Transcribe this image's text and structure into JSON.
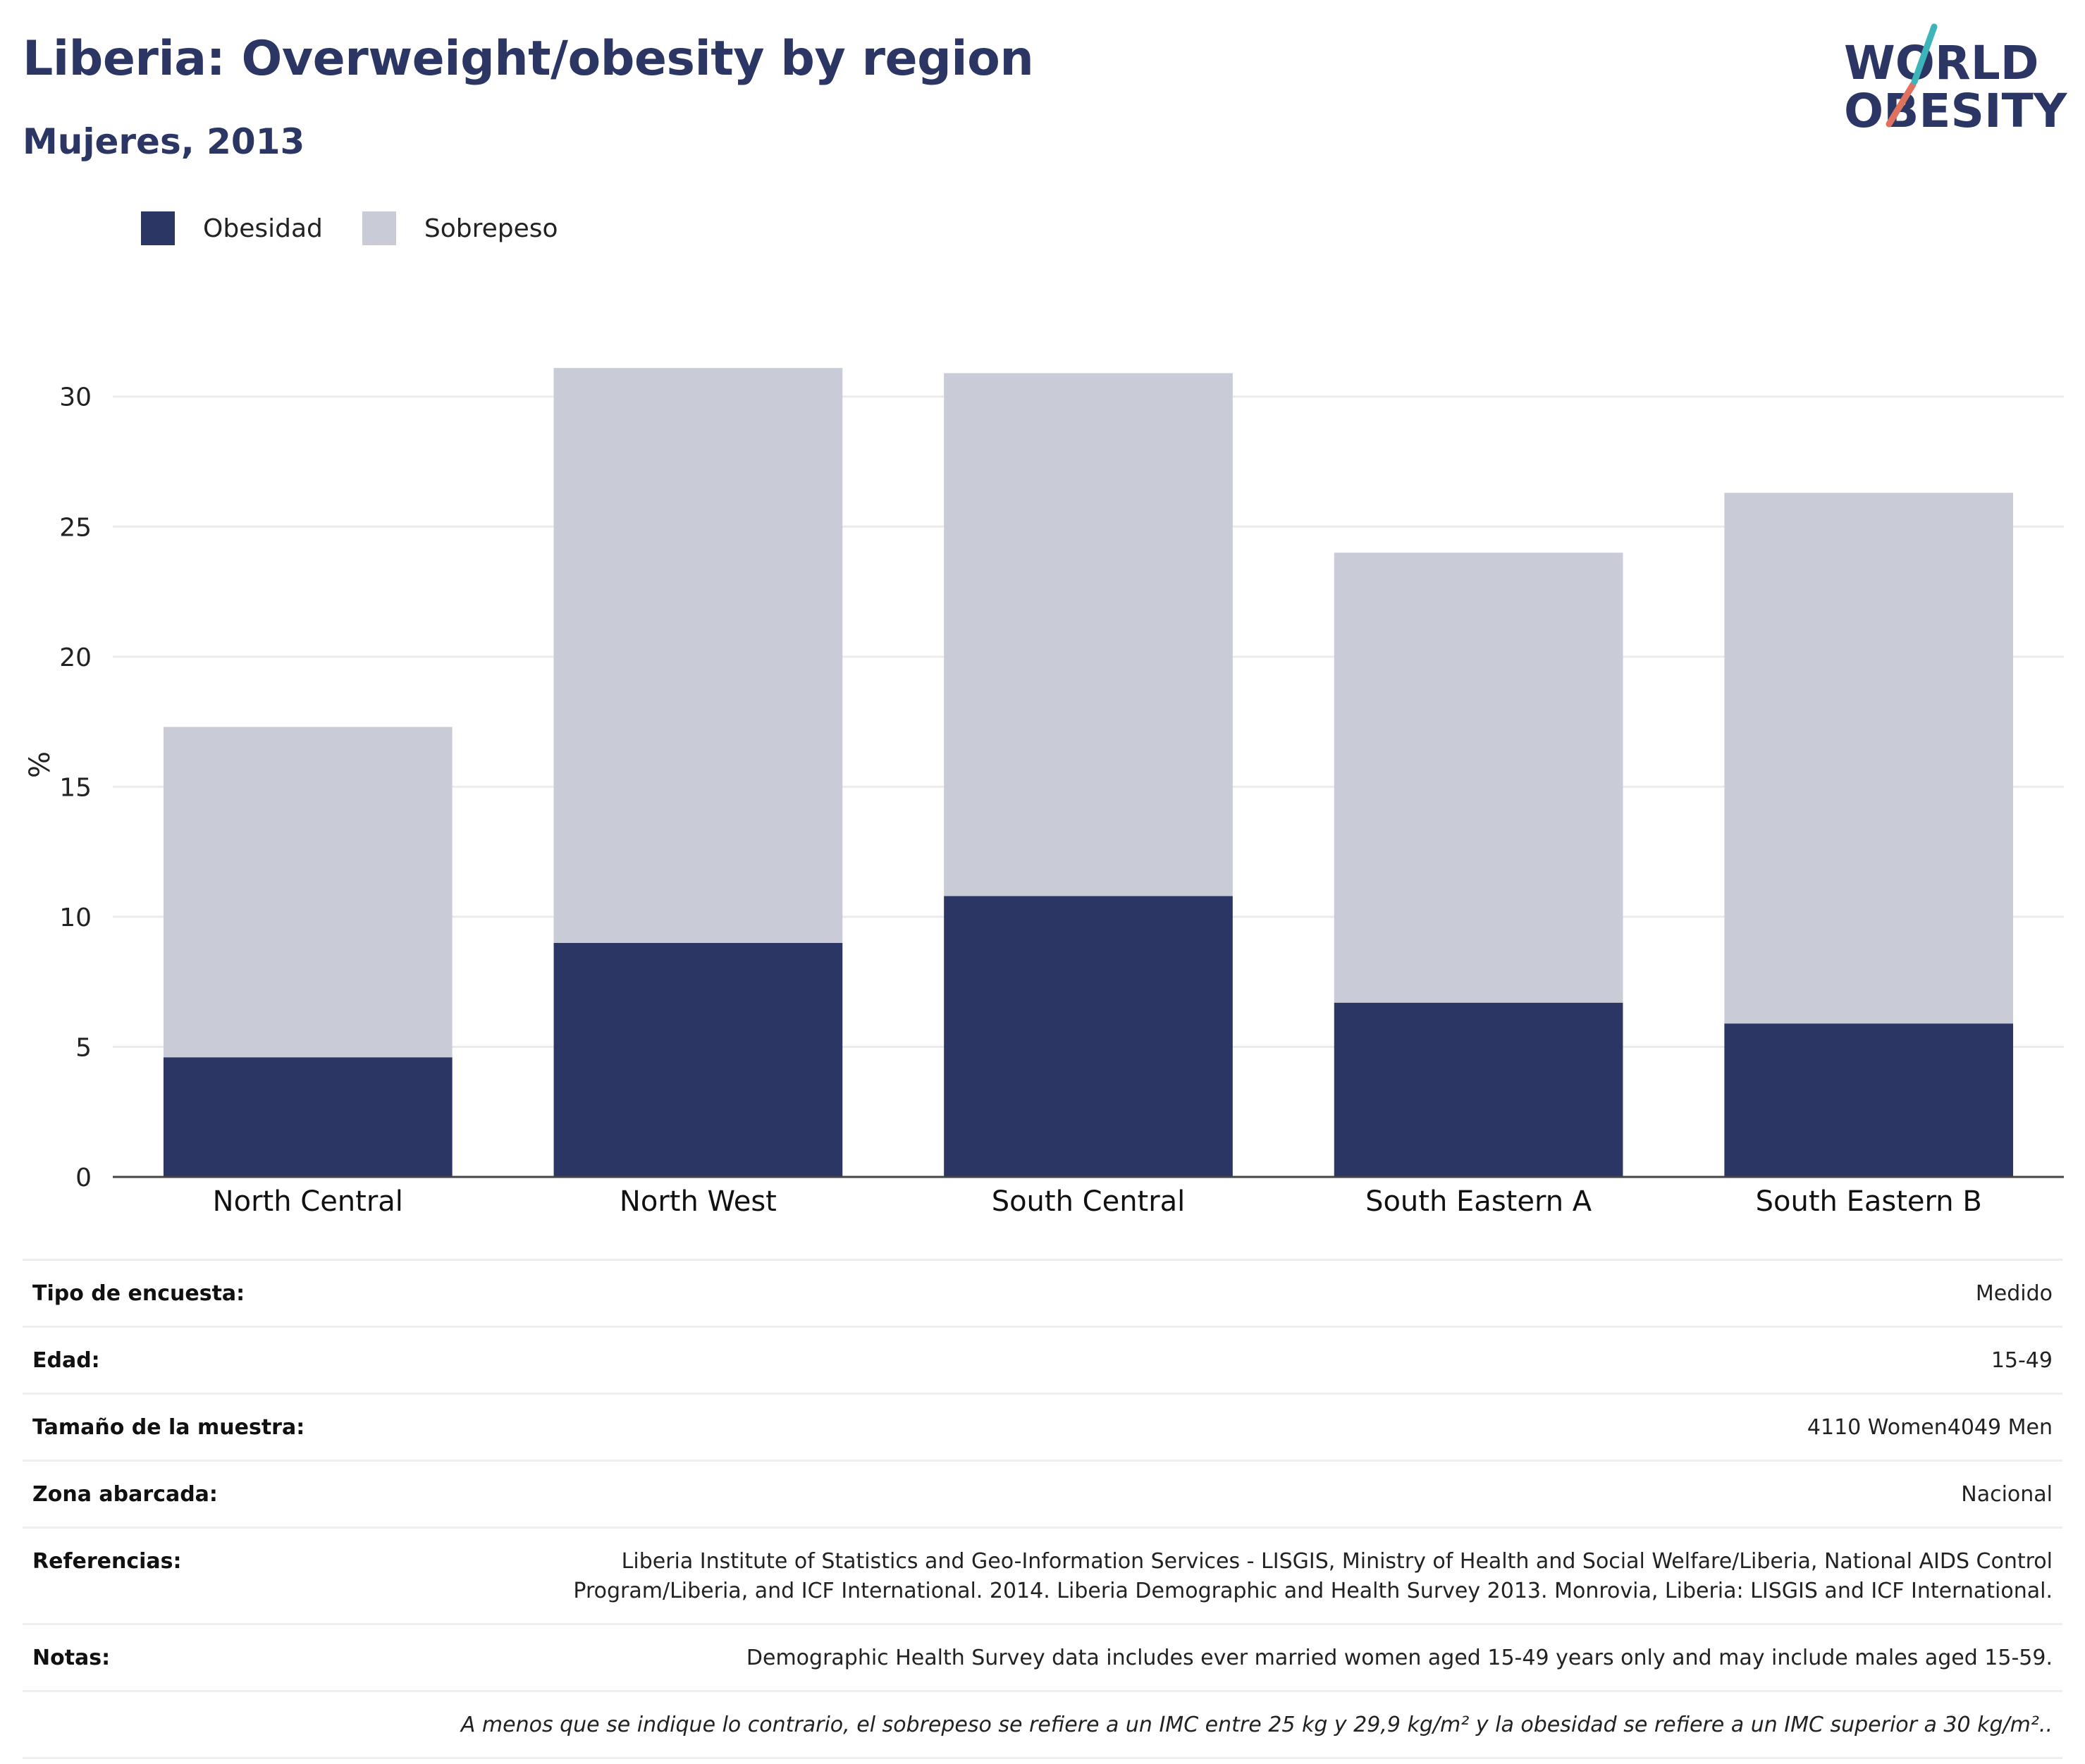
{
  "title": "Liberia: Overweight/obesity by region",
  "subtitle": "Mujeres, 2013",
  "logo": {
    "line1": "WORLD",
    "line2": "OBESITY"
  },
  "legend": [
    {
      "label": "Obesidad",
      "color": "#2b3664"
    },
    {
      "label": "Sobrepeso",
      "color": "#c9cbd7"
    }
  ],
  "chart_data": {
    "type": "bar",
    "stacked": true,
    "categories": [
      "North Central",
      "North West",
      "South Central",
      "South Eastern A",
      "South Eastern B"
    ],
    "series": [
      {
        "name": "Obesidad",
        "color": "#2b3664",
        "values": [
          4.6,
          9.0,
          10.8,
          6.7,
          5.9
        ]
      },
      {
        "name": "Sobrepeso",
        "color": "#c9cbd7",
        "values": [
          12.7,
          22.1,
          20.1,
          17.3,
          20.4
        ]
      }
    ],
    "ylabel": "%",
    "ylim": [
      0,
      31.7
    ],
    "yticks": [
      0,
      5,
      10,
      15,
      20,
      25,
      30
    ],
    "grid": true,
    "legend_position": "top-left"
  },
  "meta": [
    {
      "key": "Tipo de encuesta:",
      "value": "Medido"
    },
    {
      "key": "Edad:",
      "value": "15-49"
    },
    {
      "key": "Tamaño de la muestra:",
      "value": "4110 Women4049 Men"
    },
    {
      "key": "Zona abarcada:",
      "value": "Nacional"
    },
    {
      "key": "Referencias:",
      "value": "Liberia Institute of Statistics and Geo-Information Services - LISGIS, Ministry of Health and Social Welfare/Liberia, National AIDS Control Program/Liberia, and ICF International. 2014. Liberia Demographic and Health Survey 2013. Monrovia, Liberia: LISGIS and ICF International."
    },
    {
      "key": "Notas:",
      "value": "Demographic Health Survey data includes ever married women aged 15-49 years only and may include males aged 15-59."
    }
  ],
  "footnote": "A menos que se indique lo contrario, el sobrepeso se refiere a un IMC entre 25 kg y 29,9 kg/m² y la obesidad se refiere a un IMC superior a 30 kg/m²..",
  "colors": {
    "navy": "#2b3664",
    "grey": "#c9cbd7",
    "teal": "#3cb4b8",
    "coral": "#e0715f"
  }
}
